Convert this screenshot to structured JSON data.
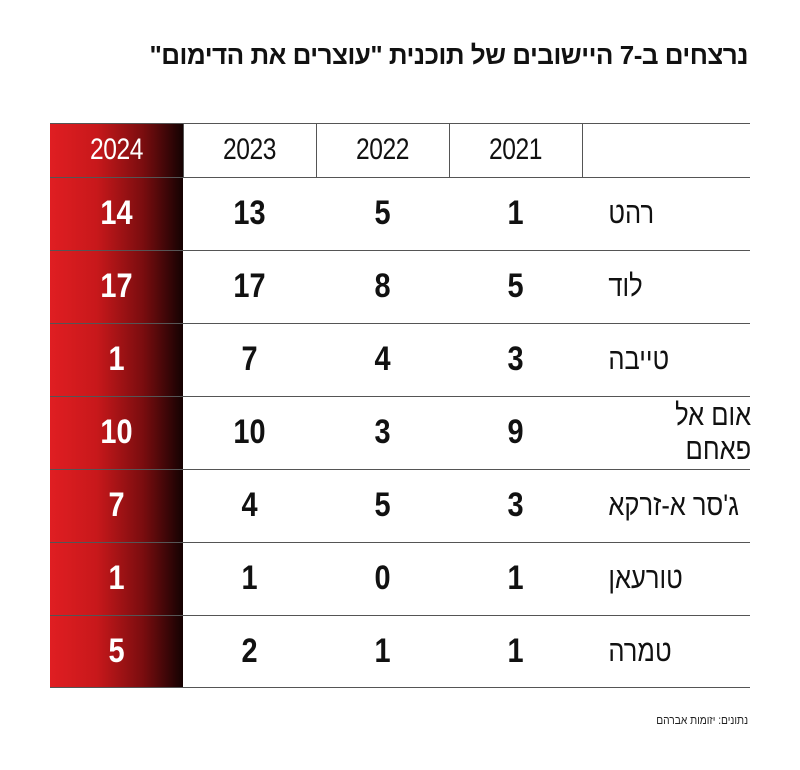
{
  "title": "נרצחים ב-7 היישובים של תוכנית \"עוצרים את הדימום\"",
  "source": "נתונים: יזומות אברהם",
  "colors": {
    "highlight_column": "#e01e22",
    "highlight_column_dark": "#140202",
    "text": "#111111",
    "rules": "#555555"
  },
  "chart_data": {
    "type": "table",
    "columns": [
      "2021",
      "2022",
      "2023",
      "2024"
    ],
    "highlighted_column": "2024",
    "rows": [
      {
        "city": "רהט",
        "values": [
          "1",
          "5",
          "13",
          "14"
        ]
      },
      {
        "city": "לוד",
        "values": [
          "5",
          "8",
          "17",
          "17"
        ]
      },
      {
        "city": "טייבה",
        "values": [
          "3",
          "4",
          "7",
          "1"
        ]
      },
      {
        "city": "אום אל פאחם",
        "values": [
          "9",
          "3",
          "10",
          "10"
        ]
      },
      {
        "city": "ג'סר א-זרקא",
        "values": [
          "3",
          "5",
          "4",
          "7"
        ]
      },
      {
        "city": "טורעאן",
        "values": [
          "1",
          "0",
          "1",
          "1"
        ]
      },
      {
        "city": "טמרה",
        "values": [
          "1",
          "1",
          "2",
          "5"
        ]
      }
    ]
  }
}
